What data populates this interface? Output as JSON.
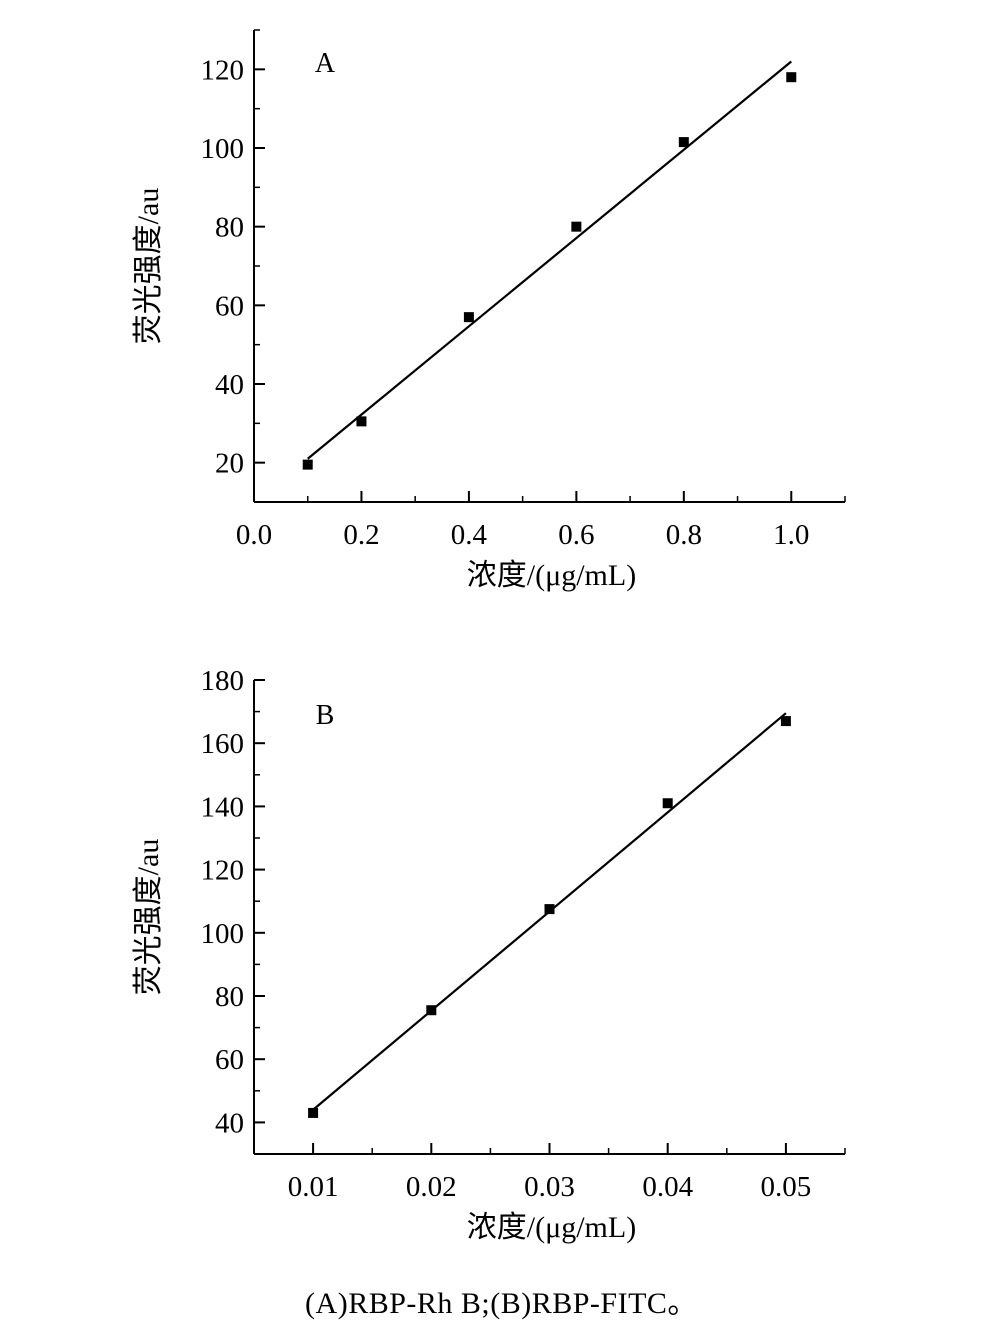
{
  "chart_data": [
    {
      "type": "scatter",
      "panel_label": "A",
      "xlabel": "浓度/(μg/mL)",
      "ylabel": "荧光强度/au",
      "xlim": [
        0.0,
        1.1
      ],
      "ylim": [
        10,
        130
      ],
      "xticks": [
        "0.0",
        "0.2",
        "0.4",
        "0.6",
        "0.8",
        "1.0"
      ],
      "yticks": [
        "20",
        "40",
        "60",
        "80",
        "100",
        "120"
      ],
      "series": [
        {
          "x": [
            0.1,
            0.2,
            0.4,
            0.6,
            0.8,
            1.0
          ],
          "y": [
            19.5,
            30.5,
            57,
            80,
            101.5,
            118
          ]
        }
      ],
      "fit_line": {
        "x": [
          0.1,
          1.0
        ],
        "y": [
          21,
          122
        ]
      },
      "grid": false
    },
    {
      "type": "scatter",
      "panel_label": "B",
      "xlabel": "浓度/(μg/mL)",
      "ylabel": "荧光强度/au",
      "xlim": [
        0.005,
        0.055
      ],
      "ylim": [
        30,
        180
      ],
      "xticks": [
        "0.01",
        "0.02",
        "0.03",
        "0.04",
        "0.05"
      ],
      "yticks": [
        "40",
        "60",
        "80",
        "100",
        "120",
        "140",
        "160",
        "180"
      ],
      "series": [
        {
          "x": [
            0.01,
            0.02,
            0.03,
            0.04,
            0.05
          ],
          "y": [
            43,
            75.5,
            107.5,
            141,
            167
          ]
        }
      ],
      "fit_line": {
        "x": [
          0.01,
          0.05
        ],
        "y": [
          44,
          169.5
        ]
      },
      "grid": false
    }
  ],
  "caption": "(A)RBP-Rh B;(B)RBP-FITC。"
}
